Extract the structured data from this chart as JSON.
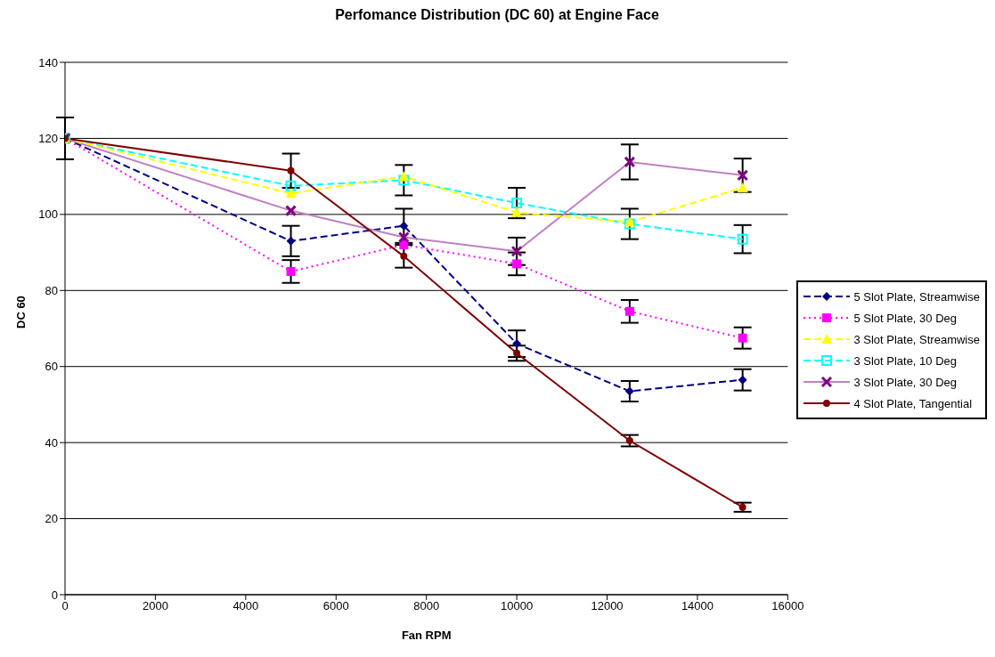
{
  "chart_data": {
    "type": "line",
    "title": "Perfomance Distribution (DC 60) at Engine Face",
    "xlabel": "Fan RPM",
    "ylabel": "DC 60",
    "x": [
      0,
      5000,
      7500,
      10000,
      12500,
      15000
    ],
    "xlim": [
      0,
      16000
    ],
    "xticks": [
      0,
      2000,
      4000,
      6000,
      8000,
      10000,
      12000,
      14000,
      16000
    ],
    "ylim": [
      0,
      140
    ],
    "yticks": [
      0,
      20,
      40,
      60,
      80,
      100,
      120,
      140
    ],
    "grid": "y",
    "legend": "right",
    "series": [
      {
        "name": "5 Slot Plate, Streamwise",
        "color": "#000080",
        "marker": "diamond",
        "line_style": "dashed",
        "values": [
          120,
          93,
          97,
          66,
          53.5,
          56.5
        ],
        "errors": [
          5.5,
          4,
          4.5,
          3.5,
          2.7,
          2.8
        ]
      },
      {
        "name": "5 Slot Plate, 30 Deg",
        "color": "#ff00ff",
        "marker": "square",
        "line_style": "dotted",
        "values": [
          120,
          85,
          92,
          87,
          74.5,
          67.5
        ],
        "errors": [
          null,
          3,
          null,
          3,
          3,
          2.8
        ]
      },
      {
        "name": "3 Slot Plate, Streamwise",
        "color": "#ffff00",
        "marker": "triangle",
        "line_style": "dashed",
        "values": [
          120,
          105.5,
          110,
          100.5,
          98,
          107
        ]
      },
      {
        "name": "3 Slot Plate, 10 Deg",
        "color": "#00ffff",
        "marker": "square",
        "line_style": "dashed",
        "values": [
          120,
          107.5,
          109,
          103,
          97.5,
          93.5
        ],
        "errors": [
          null,
          null,
          4,
          4,
          4,
          3.7
        ]
      },
      {
        "name": "3 Slot Plate, 30 Deg",
        "color": "#c080c0",
        "marker": "cross",
        "line_style": "solid",
        "values": [
          120,
          101,
          94,
          90.3,
          113.8,
          110.3
        ],
        "errors": [
          null,
          null,
          null,
          3.6,
          4.6,
          4.4
        ]
      },
      {
        "name": "4 Slot Plate, Tangential",
        "color": "#800000",
        "marker": "circle",
        "line_style": "solid",
        "values": [
          120,
          111.5,
          89,
          63.5,
          40.5,
          23
        ],
        "errors": [
          null,
          4.5,
          3,
          2,
          1.5,
          1.2
        ]
      }
    ]
  }
}
